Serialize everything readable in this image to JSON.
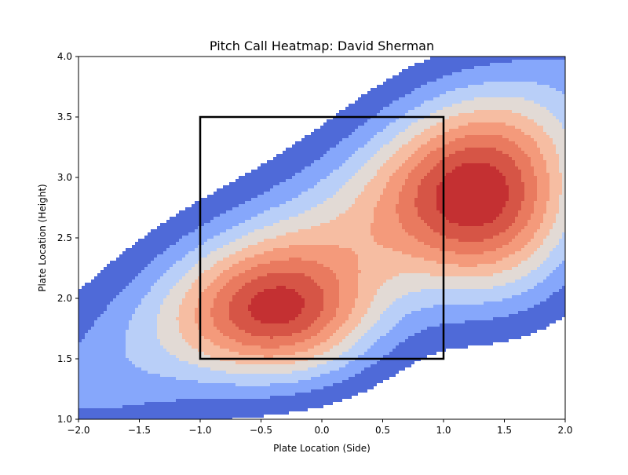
{
  "chart_data": {
    "type": "heatmap",
    "subtype": "filled-contour (kde)",
    "title": "Pitch Call Heatmap: David Sherman",
    "xlabel": "Plate Location (Side)",
    "ylabel": "Plate Location (Height)",
    "xlim": [
      -2.0,
      2.0
    ],
    "ylim": [
      1.0,
      4.0
    ],
    "xticks": [
      -2.0,
      -1.5,
      -1.0,
      -0.5,
      0.0,
      0.5,
      1.0,
      1.5,
      2.0
    ],
    "yticks": [
      1.0,
      1.5,
      2.0,
      2.5,
      3.0,
      3.5,
      4.0
    ],
    "xtick_labels": [
      "−2.0",
      "−1.5",
      "−1.0",
      "−0.5",
      "0.0",
      "0.5",
      "1.0",
      "1.5",
      "2.0"
    ],
    "ytick_labels": [
      "1.0",
      "1.5",
      "2.0",
      "2.5",
      "3.0",
      "3.5",
      "4.0"
    ],
    "colormap": "coolwarm",
    "contour_levels": 10,
    "level_colors": [
      "#ffffff",
      "#4f6ad8",
      "#86a7fb",
      "#b9cff8",
      "#e2dad5",
      "#f6bda2",
      "#f49a7b",
      "#e97a5f",
      "#d65546",
      "#c43032"
    ],
    "density_peaks": [
      {
        "x": 1.35,
        "y": 2.75,
        "weight": 1.0
      },
      {
        "x": -0.3,
        "y": 1.85,
        "weight": 0.85
      }
    ],
    "strike_zone": {
      "x": [
        -1.0,
        1.0
      ],
      "y": [
        1.5,
        3.5
      ],
      "color": "#000000"
    },
    "grid": false,
    "legend": "none"
  }
}
